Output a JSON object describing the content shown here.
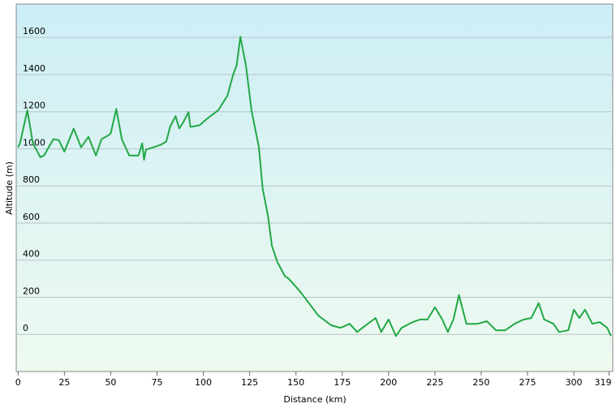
{
  "chart_data": {
    "type": "line",
    "xlabel": "Distance  (km)",
    "ylabel": "Altitude (m)",
    "xlim": [
      -1,
      321
    ],
    "ylim": [
      -200,
      1780
    ],
    "xticks": [
      0,
      25,
      50,
      75,
      100,
      125,
      150,
      175,
      200,
      225,
      250,
      275,
      300,
      319
    ],
    "yticks": [
      0,
      200,
      400,
      600,
      800,
      1000,
      1200,
      1400,
      1600
    ],
    "grid": true,
    "series": [
      {
        "color": "#22a845",
        "x": [
          0,
          1,
          5,
          8,
          12,
          14,
          19,
          22,
          25,
          30,
          34,
          38,
          42,
          45,
          49,
          50,
          53,
          56,
          60,
          65,
          67,
          68,
          69,
          73,
          77,
          80,
          82,
          85,
          87,
          89,
          92,
          93,
          98,
          102,
          108,
          113,
          116,
          118,
          120,
          123,
          126,
          130,
          132,
          135,
          137,
          140,
          144,
          146,
          148,
          152,
          157,
          162,
          169,
          174,
          179,
          183,
          187,
          193,
          196,
          200,
          204,
          207,
          213,
          217,
          221,
          225,
          229,
          232,
          235,
          238,
          242,
          248,
          253,
          258,
          263,
          268,
          273,
          277,
          281,
          284,
          289,
          292,
          297,
          300,
          303,
          306,
          310,
          314,
          318,
          320
        ],
        "values": [
          1008,
          1030,
          1207,
          1030,
          955,
          964,
          1052,
          1047,
          985,
          1109,
          1008,
          1065,
          964,
          1052,
          1074,
          1083,
          1215,
          1052,
          964,
          964,
          1030,
          941,
          995,
          1008,
          1021,
          1039,
          1118,
          1176,
          1109,
          1140,
          1198,
          1118,
          1127,
          1162,
          1207,
          1286,
          1397,
          1450,
          1604,
          1450,
          1207,
          1008,
          787,
          632,
          477,
          389,
          314,
          301,
          278,
          234,
          168,
          102,
          49,
          35,
          57,
          13,
          44,
          88,
          13,
          80,
          -9,
          35,
          66,
          80,
          80,
          146,
          80,
          13,
          80,
          212,
          57,
          57,
          71,
          22,
          22,
          57,
          80,
          88,
          168,
          80,
          57,
          13,
          22,
          133,
          88,
          133,
          57,
          66,
          35,
          -9
        ]
      }
    ]
  }
}
